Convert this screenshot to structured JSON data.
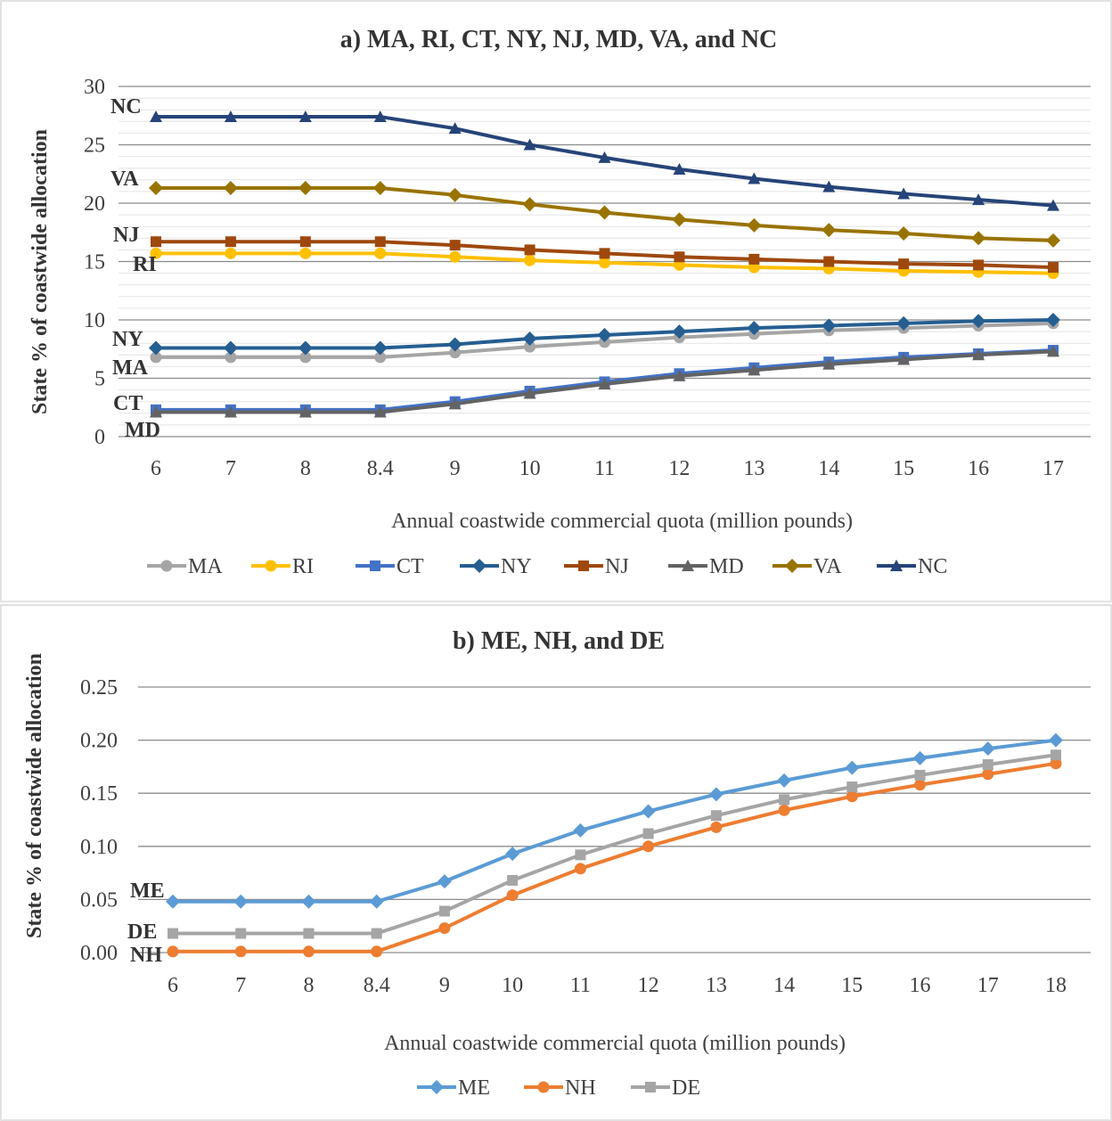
{
  "chart_data": [
    {
      "type": "line",
      "title": "a) MA, RI, CT, NY, NJ, MD, VA, and NC",
      "xlabel": "Annual coastwide commercial quota (million pounds)",
      "ylabel": "State % of coastwide allocation",
      "categories": [
        "6",
        "7",
        "8",
        "8.4",
        "9",
        "10",
        "11",
        "12",
        "13",
        "14",
        "15",
        "16",
        "17"
      ],
      "ylim": [
        0,
        30
      ],
      "yticks": [
        "0",
        "5",
        "10",
        "15",
        "20",
        "25",
        "30"
      ],
      "grid": true,
      "legend": "bottom",
      "series": [
        {
          "name": "MA",
          "color": "#a5a5a5",
          "marker": "circle",
          "values": [
            6.8,
            6.8,
            6.8,
            6.8,
            7.2,
            7.7,
            8.1,
            8.5,
            8.8,
            9.1,
            9.3,
            9.5,
            9.7
          ]
        },
        {
          "name": "RI",
          "color": "#ffc000",
          "marker": "circle",
          "values": [
            15.7,
            15.7,
            15.7,
            15.7,
            15.4,
            15.1,
            14.9,
            14.7,
            14.5,
            14.4,
            14.2,
            14.1,
            14.0
          ]
        },
        {
          "name": "CT",
          "color": "#4472c4",
          "marker": "square",
          "values": [
            2.3,
            2.3,
            2.3,
            2.3,
            3.0,
            3.9,
            4.7,
            5.4,
            5.9,
            6.4,
            6.8,
            7.1,
            7.4
          ]
        },
        {
          "name": "NY",
          "color": "#255e91",
          "marker": "diamond",
          "values": [
            7.6,
            7.6,
            7.6,
            7.6,
            7.9,
            8.4,
            8.7,
            9.0,
            9.3,
            9.5,
            9.7,
            9.9,
            10.0
          ]
        },
        {
          "name": "NJ",
          "color": "#9e480e",
          "marker": "square",
          "values": [
            16.7,
            16.7,
            16.7,
            16.7,
            16.4,
            16.0,
            15.7,
            15.4,
            15.2,
            15.0,
            14.8,
            14.7,
            14.5
          ]
        },
        {
          "name": "MD",
          "color": "#636363",
          "marker": "triangle",
          "values": [
            2.1,
            2.1,
            2.1,
            2.1,
            2.8,
            3.7,
            4.5,
            5.2,
            5.7,
            6.2,
            6.6,
            7.0,
            7.3
          ]
        },
        {
          "name": "VA",
          "color": "#997300",
          "marker": "diamond",
          "values": [
            21.3,
            21.3,
            21.3,
            21.3,
            20.7,
            19.9,
            19.2,
            18.6,
            18.1,
            17.7,
            17.4,
            17.0,
            16.8
          ]
        },
        {
          "name": "NC",
          "color": "#264478",
          "marker": "triangle",
          "values": [
            27.4,
            27.4,
            27.4,
            27.4,
            26.4,
            25.0,
            23.9,
            22.9,
            22.1,
            21.4,
            20.8,
            20.3,
            19.8
          ]
        }
      ],
      "annotations": [
        {
          "text": "NC",
          "series": "NC"
        },
        {
          "text": "VA",
          "series": "VA"
        },
        {
          "text": "NJ",
          "series": "NJ"
        },
        {
          "text": "RI",
          "series": "RI"
        },
        {
          "text": "NY",
          "series": "NY"
        },
        {
          "text": "MA",
          "series": "MA"
        },
        {
          "text": "CT",
          "series": "CT"
        },
        {
          "text": "MD",
          "series": "MD"
        }
      ]
    },
    {
      "type": "line",
      "title": "b) ME, NH, and DE",
      "xlabel": "Annual coastwide commercial quota (million pounds)",
      "ylabel": "State  % of coastwide allocation",
      "categories": [
        "6",
        "7",
        "8",
        "8.4",
        "9",
        "10",
        "11",
        "12",
        "13",
        "14",
        "15",
        "16",
        "17",
        "18"
      ],
      "ylim": [
        0,
        0.25
      ],
      "yticks": [
        "0.00",
        "0.05",
        "0.10",
        "0.15",
        "0.20",
        "0.25"
      ],
      "grid": true,
      "legend": "bottom",
      "series": [
        {
          "name": "ME",
          "color": "#5b9bd5",
          "marker": "diamond",
          "values": [
            0.048,
            0.048,
            0.048,
            0.048,
            0.067,
            0.093,
            0.115,
            0.133,
            0.149,
            0.162,
            0.174,
            0.183,
            0.192,
            0.2
          ]
        },
        {
          "name": "NH",
          "color": "#ed7d31",
          "marker": "circle",
          "values": [
            0.001,
            0.001,
            0.001,
            0.001,
            0.023,
            0.054,
            0.079,
            0.1,
            0.118,
            0.134,
            0.147,
            0.158,
            0.168,
            0.178
          ]
        },
        {
          "name": "DE",
          "color": "#a5a5a5",
          "marker": "square",
          "values": [
            0.018,
            0.018,
            0.018,
            0.018,
            0.039,
            0.068,
            0.092,
            0.112,
            0.129,
            0.144,
            0.156,
            0.167,
            0.177,
            0.186
          ]
        }
      ],
      "annotations": [
        {
          "text": "ME",
          "series": "ME"
        },
        {
          "text": "DE",
          "series": "DE"
        },
        {
          "text": "NH",
          "series": "NH"
        }
      ]
    }
  ]
}
